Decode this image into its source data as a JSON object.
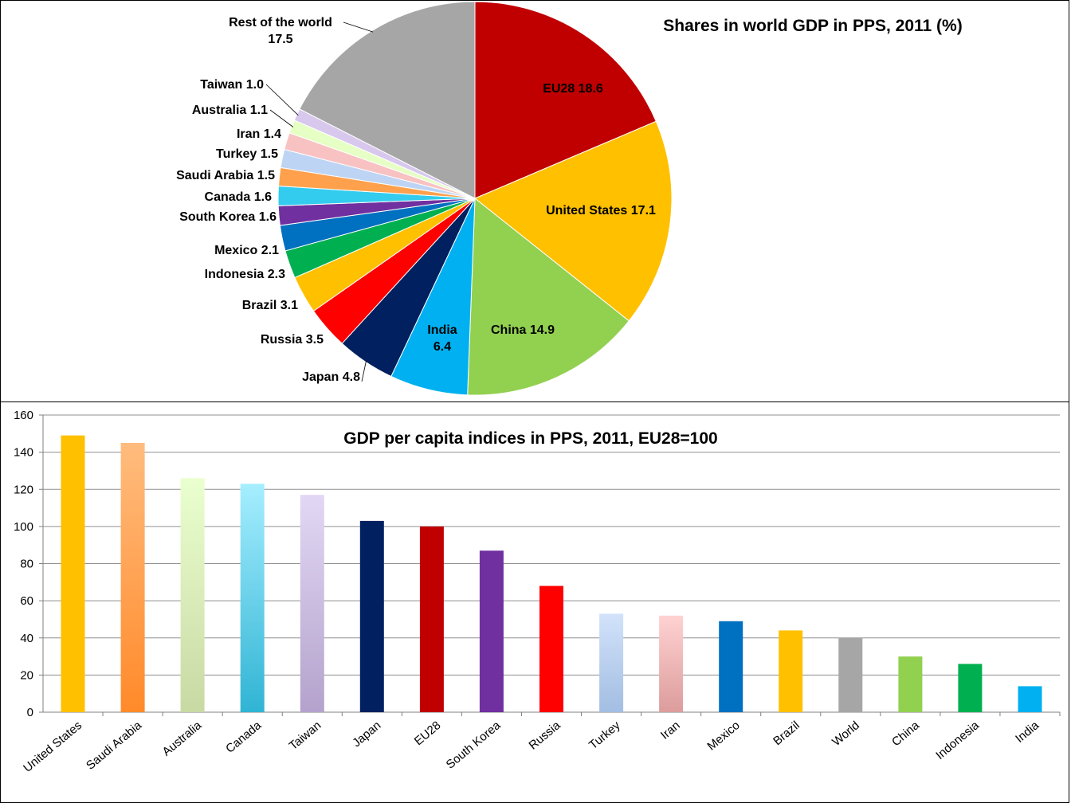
{
  "chart_data": [
    {
      "type": "pie",
      "title": "Shares in world GDP in PPS, 2011 (%)",
      "unit": "%",
      "slices": [
        {
          "label": "EU28",
          "value": 18.6,
          "color": "#C00000",
          "display": "EU28 18.6"
        },
        {
          "label": "United States",
          "value": 17.1,
          "color": "#FFC000",
          "display": "United States 17.1"
        },
        {
          "label": "China",
          "value": 14.9,
          "color": "#92D050",
          "display": "China 14.9"
        },
        {
          "label": "India",
          "value": 6.4,
          "color": "#00B0F0",
          "display": "India\n6.4"
        },
        {
          "label": "Japan",
          "value": 4.8,
          "color": "#002060",
          "display": "Japan 4.8"
        },
        {
          "label": "Russia",
          "value": 3.5,
          "color": "#FF0000",
          "display": "Russia 3.5"
        },
        {
          "label": "Brazil",
          "value": 3.1,
          "color": "#FFC000",
          "display": "Brazil 3.1"
        },
        {
          "label": "Indonesia",
          "value": 2.3,
          "color": "#00B050",
          "display": "Indonesia 2.3"
        },
        {
          "label": "Mexico",
          "value": 2.1,
          "color": "#0070C0",
          "display": "Mexico 2.1"
        },
        {
          "label": "South Korea",
          "value": 1.6,
          "color": "#7030A0",
          "display": "South Korea 1.6"
        },
        {
          "label": "Canada",
          "value": 1.6,
          "color": "#33CCEE",
          "display": "Canada 1.6"
        },
        {
          "label": "Saudi Arabia",
          "value": 1.5,
          "color": "#FFA04D",
          "display": "Saudi Arabia 1.5"
        },
        {
          "label": "Turkey",
          "value": 1.5,
          "color": "#BED4F4",
          "display": "Turkey 1.5"
        },
        {
          "label": "Iran",
          "value": 1.4,
          "color": "#F8C2C2",
          "display": "Iran 1.4"
        },
        {
          "label": "Australia",
          "value": 1.1,
          "color": "#E6FFC4",
          "display": "Australia 1.1"
        },
        {
          "label": "Taiwan",
          "value": 1.0,
          "color": "#D8C8EE",
          "display": "Taiwan 1.0"
        },
        {
          "label": "Rest of the world",
          "value": 17.5,
          "color": "#A6A6A6",
          "display": "Rest of the world\n17.5"
        }
      ]
    },
    {
      "type": "bar",
      "title": "GDP per capita indices in PPS, 2011, EU28=100",
      "ylim": [
        0,
        160
      ],
      "yticks": [
        0,
        20,
        40,
        60,
        80,
        100,
        120,
        140,
        160
      ],
      "grid": true,
      "categories": [
        "United States",
        "Saudi Arabia",
        "Australia",
        "Canada",
        "Taiwan",
        "Japan",
        "EU28",
        "South Korea",
        "Russia",
        "Turkey",
        "Iran",
        "Mexico",
        "Brazil",
        "World",
        "China",
        "Indonesia",
        "India"
      ],
      "values": [
        149,
        145,
        126,
        123,
        117,
        103,
        100,
        87,
        68,
        53,
        52,
        49,
        44,
        40,
        30,
        26,
        14
      ],
      "colors": [
        [
          "#FFC000",
          "#FFC000"
        ],
        [
          "#FFBC7E",
          "#FF8A2A"
        ],
        [
          "#EAFFCF",
          "#C9D9A4"
        ],
        [
          "#A6EEFF",
          "#30B4D4"
        ],
        [
          "#E2D8F4",
          "#B4A2CC"
        ],
        [
          "#002060",
          "#002060"
        ],
        [
          "#C00000",
          "#C00000"
        ],
        [
          "#7030A0",
          "#7030A0"
        ],
        [
          "#FF0000",
          "#FF0000"
        ],
        [
          "#D2E2FA",
          "#A2BEE2"
        ],
        [
          "#FFD2D2",
          "#DC9C9C"
        ],
        [
          "#0070C0",
          "#0070C0"
        ],
        [
          "#FFC000",
          "#FFC000"
        ],
        [
          "#A6A6A6",
          "#A6A6A6"
        ],
        [
          "#92D050",
          "#92D050"
        ],
        [
          "#00B050",
          "#00B050"
        ],
        [
          "#00B0F0",
          "#00B0F0"
        ]
      ]
    }
  ]
}
